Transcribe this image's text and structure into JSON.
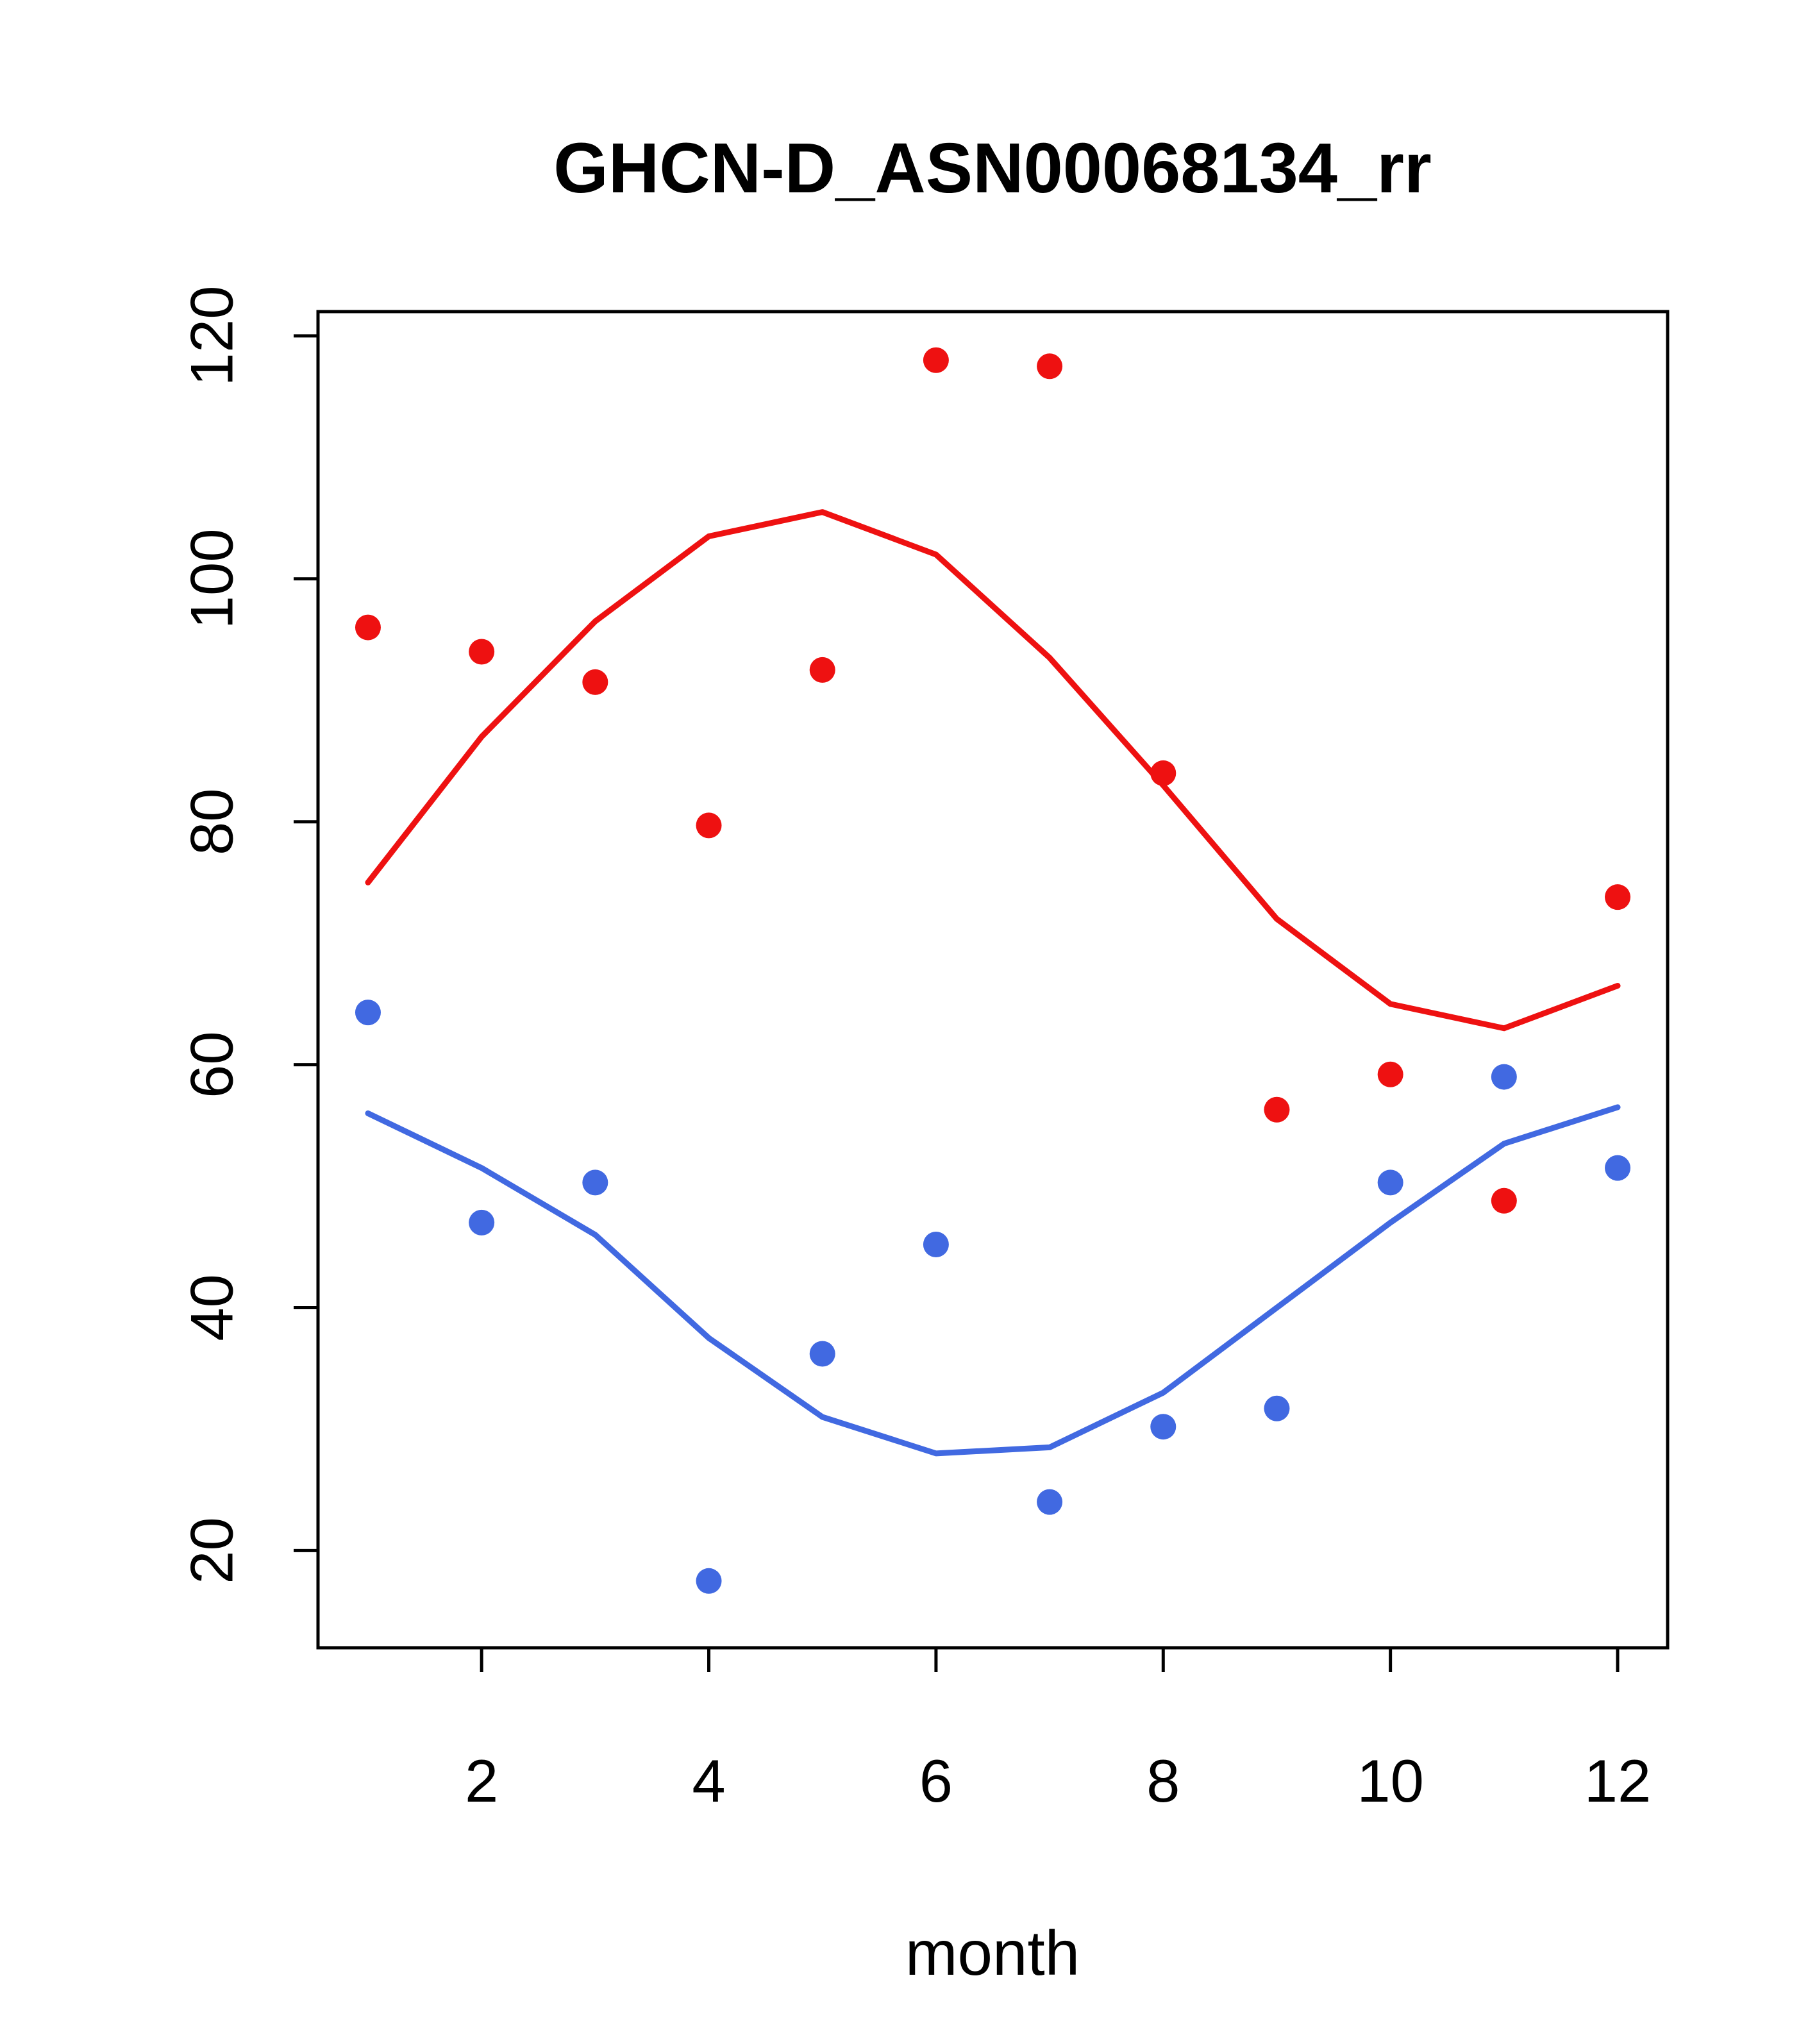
{
  "chart_data": {
    "type": "scatter",
    "title": "GHCN-D_ASN00068134_rr",
    "xlabel": "month",
    "ylabel": "",
    "x": [
      1,
      2,
      3,
      4,
      5,
      6,
      7,
      8,
      9,
      10,
      11,
      12
    ],
    "xticks": [
      2,
      4,
      6,
      8,
      10,
      12
    ],
    "yticks": [
      20,
      40,
      60,
      80,
      100,
      120
    ],
    "xlim": [
      0.56,
      12.44
    ],
    "ylim": [
      12,
      122
    ],
    "grid": false,
    "legend": "none",
    "colors": {
      "red": "#ee1111",
      "blue": "#4169e1"
    },
    "series": [
      {
        "name": "red-points",
        "kind": "points",
        "color": "#ee1111",
        "values": [
          96,
          94,
          91.5,
          79.7,
          92.5,
          118,
          117.5,
          84,
          56.3,
          59.2,
          48.8,
          73.8
        ]
      },
      {
        "name": "red-loess-line",
        "kind": "line",
        "color": "#ee1111",
        "values": [
          75,
          87,
          96.5,
          103.5,
          105.5,
          102,
          93.5,
          83,
          72,
          65,
          63,
          66.5
        ]
      },
      {
        "name": "blue-points",
        "kind": "points",
        "color": "#4169e1",
        "values": [
          64.3,
          47,
          50.3,
          17.5,
          36.2,
          45.2,
          24,
          30.2,
          31.7,
          50.3,
          59,
          51.5
        ]
      },
      {
        "name": "blue-loess-line",
        "kind": "line",
        "color": "#4169e1",
        "values": [
          56,
          51.5,
          46,
          37.5,
          31,
          28,
          28.5,
          33,
          40,
          47,
          53.5,
          56.5
        ]
      }
    ]
  }
}
